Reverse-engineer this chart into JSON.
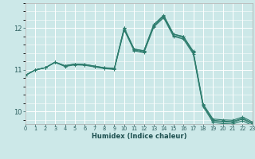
{
  "xlabel": "Humidex (Indice chaleur)",
  "background_color": "#cce8e8",
  "grid_color": "#ffffff",
  "line_color": "#2e7d6e",
  "xlim": [
    0,
    23
  ],
  "ylim": [
    9.7,
    12.6
  ],
  "yticks": [
    10,
    11,
    12
  ],
  "xticks": [
    0,
    1,
    2,
    3,
    4,
    5,
    6,
    7,
    8,
    9,
    10,
    11,
    12,
    13,
    14,
    15,
    16,
    17,
    18,
    19,
    20,
    21,
    22,
    23
  ],
  "series": [
    [
      10.87,
      11.0,
      11.05,
      11.18,
      11.1,
      11.14,
      11.13,
      11.09,
      11.05,
      11.04,
      12.0,
      11.5,
      11.45,
      12.08,
      12.3,
      11.85,
      11.8,
      11.45,
      10.18,
      9.82,
      9.8,
      9.79,
      9.87,
      9.75
    ],
    [
      10.87,
      11.0,
      11.05,
      11.18,
      11.09,
      11.13,
      11.12,
      11.08,
      11.04,
      11.02,
      11.98,
      11.48,
      11.43,
      12.05,
      12.27,
      11.82,
      11.77,
      11.41,
      10.15,
      9.78,
      9.75,
      9.74,
      9.82,
      9.7
    ],
    [
      10.87,
      11.0,
      11.05,
      11.18,
      11.08,
      11.12,
      11.11,
      11.07,
      11.03,
      11.01,
      11.96,
      11.46,
      11.41,
      12.03,
      12.25,
      11.8,
      11.74,
      11.38,
      10.12,
      9.74,
      9.71,
      9.7,
      9.78,
      9.66
    ],
    [
      10.87,
      11.0,
      11.05,
      11.19,
      11.1,
      11.14,
      11.13,
      11.09,
      11.05,
      11.03,
      12.01,
      11.5,
      11.46,
      12.09,
      12.31,
      11.86,
      11.8,
      11.43,
      10.16,
      9.79,
      9.77,
      9.76,
      9.84,
      9.72
    ]
  ]
}
